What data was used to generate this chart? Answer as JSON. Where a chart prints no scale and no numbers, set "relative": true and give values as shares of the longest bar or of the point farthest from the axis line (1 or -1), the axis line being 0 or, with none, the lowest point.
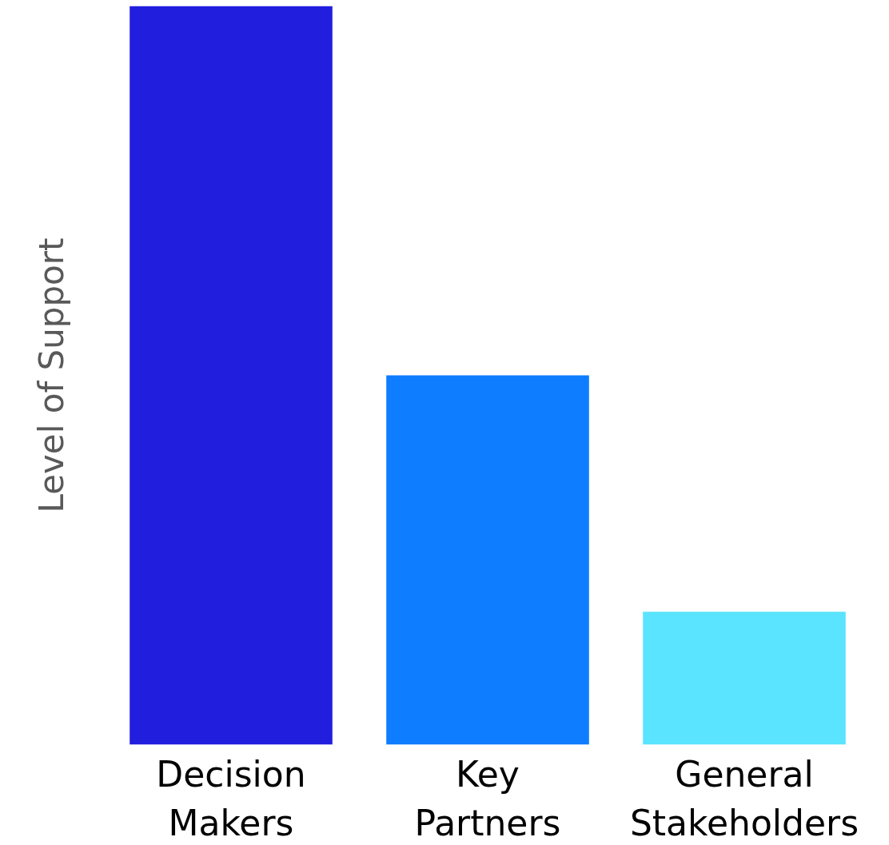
{
  "chart_data": {
    "type": "bar",
    "relative": true,
    "ylabel": "Level of Support",
    "categories": [
      "Decision Makers",
      "Key Partners",
      "General Stakeholders"
    ],
    "values": [
      1,
      0.5,
      0.18
    ],
    "colors": [
      "#221ede",
      "#0e7dff",
      "#5ae4ff"
    ]
  }
}
